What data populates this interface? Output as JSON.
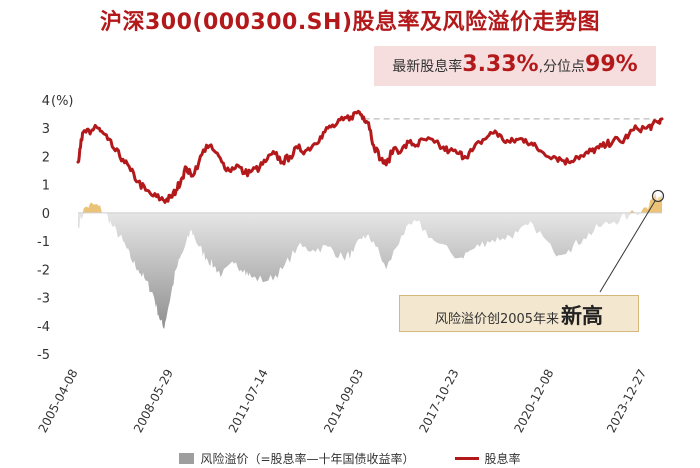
{
  "chart_data": {
    "type": "line",
    "title": "沪深300(000300.SH)股息率及风险溢价走势图",
    "ylabel_unit": "(%)",
    "ylim": [
      -5,
      4
    ],
    "yticks": [
      "4",
      "3",
      "2",
      "1",
      "0",
      "-1",
      "-2",
      "-3",
      "-4",
      "-5"
    ],
    "xticks": [
      "2005-04-08",
      "2008-05-29",
      "2011-07-14",
      "2014-09-03",
      "2017-10-23",
      "2020-12-08",
      "2023-12-27"
    ],
    "x_range": [
      "2005-04-08",
      "2024-06-30"
    ],
    "grid": false,
    "legend_position": "bottom",
    "colors": {
      "dividend_yield": "#b3191b",
      "risk_premium": "#9e9e9e",
      "premium_positive": "#e8b860"
    },
    "series": [
      {
        "name": "股息率",
        "type": "line",
        "points": [
          [
            "2005-04-08",
            1.8
          ],
          [
            "2005-05-15",
            2.6
          ],
          [
            "2005-07-01",
            2.9
          ],
          [
            "2005-09-01",
            2.8
          ],
          [
            "2005-11-01",
            3.1
          ],
          [
            "2006-01-01",
            2.9
          ],
          [
            "2006-04-01",
            2.6
          ],
          [
            "2006-07-01",
            2.2
          ],
          [
            "2006-10-01",
            1.9
          ],
          [
            "2007-01-01",
            1.5
          ],
          [
            "2007-04-01",
            1.1
          ],
          [
            "2007-07-01",
            0.8
          ],
          [
            "2007-10-01",
            0.6
          ],
          [
            "2008-01-01",
            0.5
          ],
          [
            "2008-03-01",
            0.45
          ],
          [
            "2008-05-01",
            0.55
          ],
          [
            "2008-07-01",
            0.8
          ],
          [
            "2008-09-01",
            1.2
          ],
          [
            "2008-11-01",
            1.6
          ],
          [
            "2009-01-01",
            1.3
          ],
          [
            "2009-04-01",
            1.8
          ],
          [
            "2009-07-01",
            2.4
          ],
          [
            "2009-10-01",
            2.2
          ],
          [
            "2010-01-01",
            1.8
          ],
          [
            "2010-04-01",
            1.5
          ],
          [
            "2010-07-01",
            1.7
          ],
          [
            "2010-10-01",
            1.4
          ],
          [
            "2011-01-01",
            1.5
          ],
          [
            "2011-04-01",
            1.6
          ],
          [
            "2011-07-01",
            1.9
          ],
          [
            "2011-10-01",
            2.1
          ],
          [
            "2012-01-01",
            1.8
          ],
          [
            "2012-04-01",
            2.0
          ],
          [
            "2012-07-01",
            2.3
          ],
          [
            "2012-10-01",
            2.2
          ],
          [
            "2013-01-01",
            2.4
          ],
          [
            "2013-04-01",
            2.7
          ],
          [
            "2013-07-01",
            3.0
          ],
          [
            "2013-10-01",
            3.1
          ],
          [
            "2014-01-01",
            3.3
          ],
          [
            "2014-04-01",
            3.4
          ],
          [
            "2014-07-01",
            3.6
          ],
          [
            "2014-09-03",
            3.4
          ],
          [
            "2014-11-01",
            3.2
          ],
          [
            "2015-01-01",
            2.4
          ],
          [
            "2015-04-01",
            1.9
          ],
          [
            "2015-06-01",
            1.7
          ],
          [
            "2015-09-01",
            2.3
          ],
          [
            "2015-12-01",
            2.2
          ],
          [
            "2016-03-01",
            2.5
          ],
          [
            "2016-06-01",
            2.4
          ],
          [
            "2016-09-01",
            2.6
          ],
          [
            "2017-01-01",
            2.5
          ],
          [
            "2017-04-01",
            2.3
          ],
          [
            "2017-07-01",
            2.2
          ],
          [
            "2017-10-23",
            2.1
          ],
          [
            "2018-01-01",
            2.0
          ],
          [
            "2018-04-01",
            2.2
          ],
          [
            "2018-07-01",
            2.5
          ],
          [
            "2018-10-01",
            2.7
          ],
          [
            "2019-01-01",
            2.9
          ],
          [
            "2019-04-01",
            2.6
          ],
          [
            "2019-07-01",
            2.5
          ],
          [
            "2019-10-01",
            2.6
          ],
          [
            "2020-01-01",
            2.6
          ],
          [
            "2020-04-01",
            2.4
          ],
          [
            "2020-07-01",
            2.2
          ],
          [
            "2020-12-08",
            2.0
          ],
          [
            "2021-03-01",
            1.9
          ],
          [
            "2021-06-01",
            1.8
          ],
          [
            "2021-09-01",
            2.0
          ],
          [
            "2021-12-01",
            2.0
          ],
          [
            "2022-03-01",
            2.2
          ],
          [
            "2022-06-01",
            2.3
          ],
          [
            "2022-09-01",
            2.4
          ],
          [
            "2022-12-01",
            2.6
          ],
          [
            "2023-03-01",
            2.5
          ],
          [
            "2023-06-01",
            2.8
          ],
          [
            "2023-09-01",
            3.0
          ],
          [
            "2023-12-27",
            3.0
          ],
          [
            "2024-03-01",
            3.1
          ],
          [
            "2024-05-15",
            3.2
          ],
          [
            "2024-06-30",
            3.33
          ]
        ]
      },
      {
        "name": "风险溢价（=股息率—十年国债收益率）",
        "type": "area",
        "points": [
          [
            "2005-04-08",
            -0.5
          ],
          [
            "2005-07-01",
            0.2
          ],
          [
            "2005-11-01",
            0.3
          ],
          [
            "2006-03-01",
            0.0
          ],
          [
            "2006-06-01",
            -0.5
          ],
          [
            "2006-10-01",
            -1.0
          ],
          [
            "2007-01-01",
            -1.6
          ],
          [
            "2007-04-01",
            -2.0
          ],
          [
            "2007-07-01",
            -2.4
          ],
          [
            "2007-10-01",
            -2.9
          ],
          [
            "2007-12-01",
            -3.6
          ],
          [
            "2008-02-01",
            -4.1
          ],
          [
            "2008-04-01",
            -3.3
          ],
          [
            "2008-07-01",
            -2.0
          ],
          [
            "2008-10-01",
            -1.3
          ],
          [
            "2009-01-01",
            -0.6
          ],
          [
            "2009-04-01",
            -1.2
          ],
          [
            "2009-07-01",
            -1.6
          ],
          [
            "2009-10-01",
            -1.9
          ],
          [
            "2010-01-01",
            -2.2
          ],
          [
            "2010-06-01",
            -1.8
          ],
          [
            "2010-10-01",
            -2.0
          ],
          [
            "2011-01-01",
            -2.3
          ],
          [
            "2011-07-14",
            -2.4
          ],
          [
            "2012-01-01",
            -2.0
          ],
          [
            "2012-07-01",
            -1.2
          ],
          [
            "2013-01-01",
            -1.3
          ],
          [
            "2013-07-01",
            -1.2
          ],
          [
            "2014-01-01",
            -1.6
          ],
          [
            "2014-05-01",
            -1.4
          ],
          [
            "2014-09-03",
            -0.8
          ],
          [
            "2015-01-01",
            -1.0
          ],
          [
            "2015-06-01",
            -2.0
          ],
          [
            "2015-12-01",
            -0.8
          ],
          [
            "2016-06-01",
            -0.3
          ],
          [
            "2017-01-01",
            -1.0
          ],
          [
            "2017-10-23",
            -1.6
          ],
          [
            "2018-04-01",
            -1.3
          ],
          [
            "2018-10-01",
            -1.0
          ],
          [
            "2019-04-01",
            -0.9
          ],
          [
            "2019-10-01",
            -0.7
          ],
          [
            "2020-04-01",
            -0.4
          ],
          [
            "2020-12-08",
            -1.4
          ],
          [
            "2021-06-01",
            -1.3
          ],
          [
            "2021-12-01",
            -0.9
          ],
          [
            "2022-06-01",
            -0.5
          ],
          [
            "2022-12-01",
            -0.3
          ],
          [
            "2023-06-01",
            -0.1
          ],
          [
            "2023-12-27",
            0.2
          ],
          [
            "2024-03-01",
            0.5
          ],
          [
            "2024-06-30",
            0.65
          ]
        ]
      }
    ],
    "reference_line": {
      "style": "dashed",
      "value": 3.33
    }
  },
  "callouts": {
    "yield_prefix": "最新股息率",
    "yield_value": "3.33%",
    "percentile_prefix": ",分位点",
    "percentile_value": "99%",
    "premium_text": "风险溢价创2005年来",
    "premium_emphasis": "新高"
  },
  "legend": {
    "premium_label": "风险溢价（=股息率—十年国债收益率）",
    "yield_label": "股息率"
  }
}
